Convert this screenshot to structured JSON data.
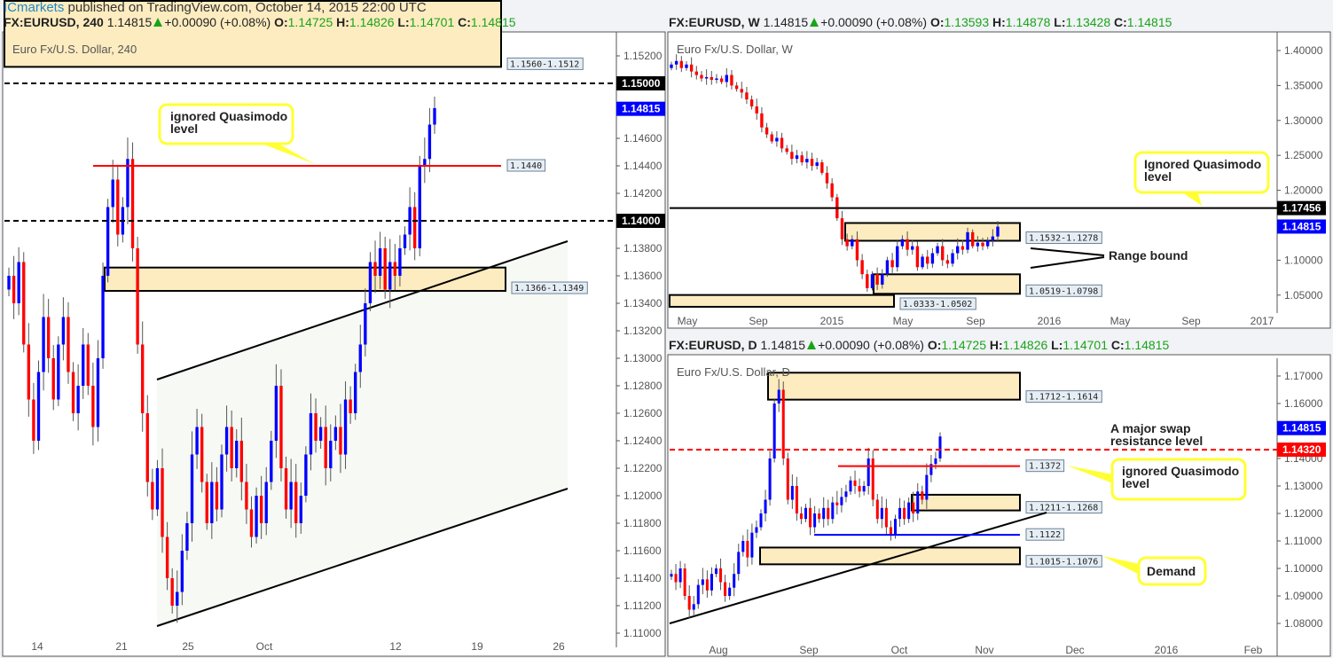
{
  "publisher": {
    "name": "ICmarkets",
    "text": "published on TradingView.com, October 14, 2015 22:00 UTC"
  },
  "panels": {
    "h4": {
      "symbol": "FX:EURUSD, 240",
      "last": "1.14815",
      "change": "+0.00090 (+0.08%)",
      "o": "1.14725",
      "h": "1.14826",
      "l": "1.14701",
      "c": "1.14815",
      "title": "Euro Fx/U.S. Dollar, 240"
    },
    "w": {
      "symbol": "FX:EURUSD, W",
      "last": "1.14815",
      "change": "+0.00090 (+0.08%)",
      "o": "1.13593",
      "h": "1.14878",
      "l": "1.13428",
      "c": "1.14815",
      "title": "Euro Fx/U.S. Dollar, W"
    },
    "d": {
      "symbol": "FX:EURUSD, D",
      "last": "1.14815",
      "change": "+0.00090 (+0.08%)",
      "o": "1.14725",
      "h": "1.14826",
      "l": "1.14701",
      "c": "1.14815",
      "title": "Euro Fx/U.S. Dollar, D"
    }
  },
  "colors": {
    "up": "#0000ff",
    "down": "#ff0000",
    "zone": "#fdecc0",
    "callout": "#ffff33",
    "price_tag": "#0000ff"
  },
  "chart_data": [
    {
      "type": "candlestick",
      "timeframe": "240",
      "yticks": [
        "1.15200",
        "1.14600",
        "1.14400",
        "1.14200",
        "1.13800",
        "1.13600",
        "1.13400",
        "1.13200",
        "1.13000",
        "1.12800",
        "1.12600",
        "1.12400",
        "1.12200",
        "1.12000",
        "1.11800",
        "1.11600",
        "1.11400",
        "1.11200",
        "1.11000"
      ],
      "xticks": [
        "14",
        "21",
        "25",
        "Oct",
        "12",
        "19",
        "26"
      ],
      "closes": [
        1.136,
        1.134,
        1.137,
        1.131,
        1.127,
        1.124,
        1.129,
        1.133,
        1.13,
        1.127,
        1.131,
        1.133,
        1.129,
        1.126,
        1.128,
        1.131,
        1.128,
        1.125,
        1.13,
        1.136,
        1.141,
        1.143,
        1.139,
        1.141,
        1.1445,
        1.138,
        1.131,
        1.126,
        1.121,
        1.119,
        1.122,
        1.117,
        1.114,
        1.112,
        1.113,
        1.116,
        1.118,
        1.123,
        1.125,
        1.121,
        1.118,
        1.121,
        1.119,
        1.123,
        1.125,
        1.122,
        1.124,
        1.121,
        1.119,
        1.117,
        1.12,
        1.118,
        1.121,
        1.124,
        1.128,
        1.122,
        1.119,
        1.121,
        1.118,
        1.12,
        1.123,
        1.126,
        1.124,
        1.125,
        1.122,
        1.124,
        1.125,
        1.123,
        1.127,
        1.126,
        1.129,
        1.131,
        1.134,
        1.137,
        1.136,
        1.138,
        1.135,
        1.137,
        1.136,
        1.138,
        1.139,
        1.141,
        1.138,
        1.144,
        1.1445,
        1.147,
        1.1482
      ],
      "levels": [
        {
          "price": 1.15,
          "tag": "1.15000",
          "style": "dashed"
        },
        {
          "price": 1.14,
          "tag": "1.14000",
          "style": "dashed"
        },
        {
          "price": 1.144,
          "label": "1.1440",
          "color": "#ff0000"
        }
      ],
      "zones": [
        {
          "top": 1.156,
          "bottom": 1.1512,
          "label": "1.1560-1.1512"
        },
        {
          "top": 1.1366,
          "bottom": 1.1349,
          "label": "1.1366-1.1349"
        }
      ],
      "last_tag": "1.14815",
      "annotations": [
        "ignored Quasimodo level"
      ]
    },
    {
      "type": "candlestick",
      "timeframe": "W",
      "yticks": [
        "1.40000",
        "1.35000",
        "1.30000",
        "1.25000",
        "1.20000",
        "1.10000",
        "1.05000"
      ],
      "xticks": [
        "May",
        "Sep",
        "2015",
        "May",
        "Sep",
        "2016",
        "May",
        "Sep",
        "2017"
      ],
      "closes": [
        1.38,
        1.385,
        1.375,
        1.38,
        1.37,
        1.365,
        1.36,
        1.362,
        1.358,
        1.36,
        1.355,
        1.365,
        1.35,
        1.345,
        1.34,
        1.33,
        1.32,
        1.31,
        1.29,
        1.28,
        1.27,
        1.275,
        1.26,
        1.255,
        1.245,
        1.25,
        1.24,
        1.245,
        1.235,
        1.24,
        1.225,
        1.21,
        1.19,
        1.16,
        1.13,
        1.12,
        1.13,
        1.1,
        1.08,
        1.06,
        1.08,
        1.065,
        1.08,
        1.1,
        1.09,
        1.12,
        1.13,
        1.115,
        1.12,
        1.09,
        1.105,
        1.095,
        1.11,
        1.12,
        1.1,
        1.095,
        1.11,
        1.12,
        1.115,
        1.14,
        1.12,
        1.125,
        1.12,
        1.128,
        1.134,
        1.148
      ],
      "levels": [
        {
          "price": 1.17456,
          "tag": "1.17456"
        }
      ],
      "zones": [
        {
          "top": 1.1532,
          "bottom": 1.1278,
          "label": "1.1532-1.1278"
        },
        {
          "top": 1.0798,
          "bottom": 1.0519,
          "label": "1.0519-1.0798"
        },
        {
          "top": 1.0502,
          "bottom": 1.0333,
          "label": "1.0333-1.0502"
        }
      ],
      "last_tag": "1.14815",
      "annotations": [
        "Ignored Quasimodo level",
        "Range bound"
      ]
    },
    {
      "type": "candlestick",
      "timeframe": "D",
      "yticks": [
        "1.17000",
        "1.16000",
        "1.14000",
        "1.13000",
        "1.12000",
        "1.11000",
        "1.10000",
        "1.09000",
        "1.08000"
      ],
      "xticks": [
        "Aug",
        "Sep",
        "Oct",
        "Nov",
        "Dec",
        "2016",
        "Feb"
      ],
      "closes": [
        1.098,
        1.095,
        1.1,
        1.09,
        1.085,
        1.087,
        1.094,
        1.096,
        1.092,
        1.098,
        1.1,
        1.095,
        1.09,
        1.093,
        1.098,
        1.106,
        1.11,
        1.104,
        1.113,
        1.115,
        1.12,
        1.125,
        1.14,
        1.16,
        1.165,
        1.14,
        1.125,
        1.13,
        1.12,
        1.118,
        1.122,
        1.115,
        1.12,
        1.118,
        1.122,
        1.118,
        1.124,
        1.123,
        1.126,
        1.128,
        1.132,
        1.13,
        1.128,
        1.13,
        1.14,
        1.125,
        1.118,
        1.122,
        1.115,
        1.112,
        1.118,
        1.122,
        1.118,
        1.124,
        1.12,
        1.128,
        1.125,
        1.134,
        1.138,
        1.14,
        1.148
      ],
      "levels": [
        {
          "price": 1.1432,
          "tag": "1.14320",
          "style": "dashed",
          "color": "#ff0000"
        },
        {
          "price": 1.1372,
          "label": "1.1372",
          "color": "#ff0000"
        },
        {
          "price": 1.1122,
          "label": "1.1122",
          "color": "#0000ff"
        }
      ],
      "zones": [
        {
          "top": 1.1712,
          "bottom": 1.1614,
          "label": "1.1712-1.1614"
        },
        {
          "top": 1.1268,
          "bottom": 1.1211,
          "label": "1.1211-1.1268"
        },
        {
          "top": 1.1076,
          "bottom": 1.1015,
          "label": "1.1015-1.1076"
        }
      ],
      "last_tag": "1.14815",
      "annotations": [
        "A major swap resistance level",
        "ignored Quasimodo level",
        "Demand"
      ]
    }
  ]
}
